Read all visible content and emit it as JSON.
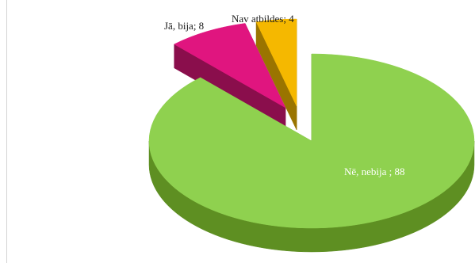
{
  "chart_data": {
    "type": "pie",
    "style": "3d-exploded",
    "title": "",
    "categories": [
      "Nē, nebija",
      "Jā, bija",
      "Nav atbildes"
    ],
    "values": [
      88,
      8,
      4
    ],
    "labels": [
      "Nē, nebija ; 88",
      "Jā, bija; 8",
      "Nav atbildes; 4"
    ],
    "colors": [
      "#8fd14f",
      "#e0157f",
      "#f5b800"
    ],
    "side_colors": [
      "#5e8f22",
      "#8a0e4c",
      "#9a7400"
    ],
    "legend": "none"
  }
}
